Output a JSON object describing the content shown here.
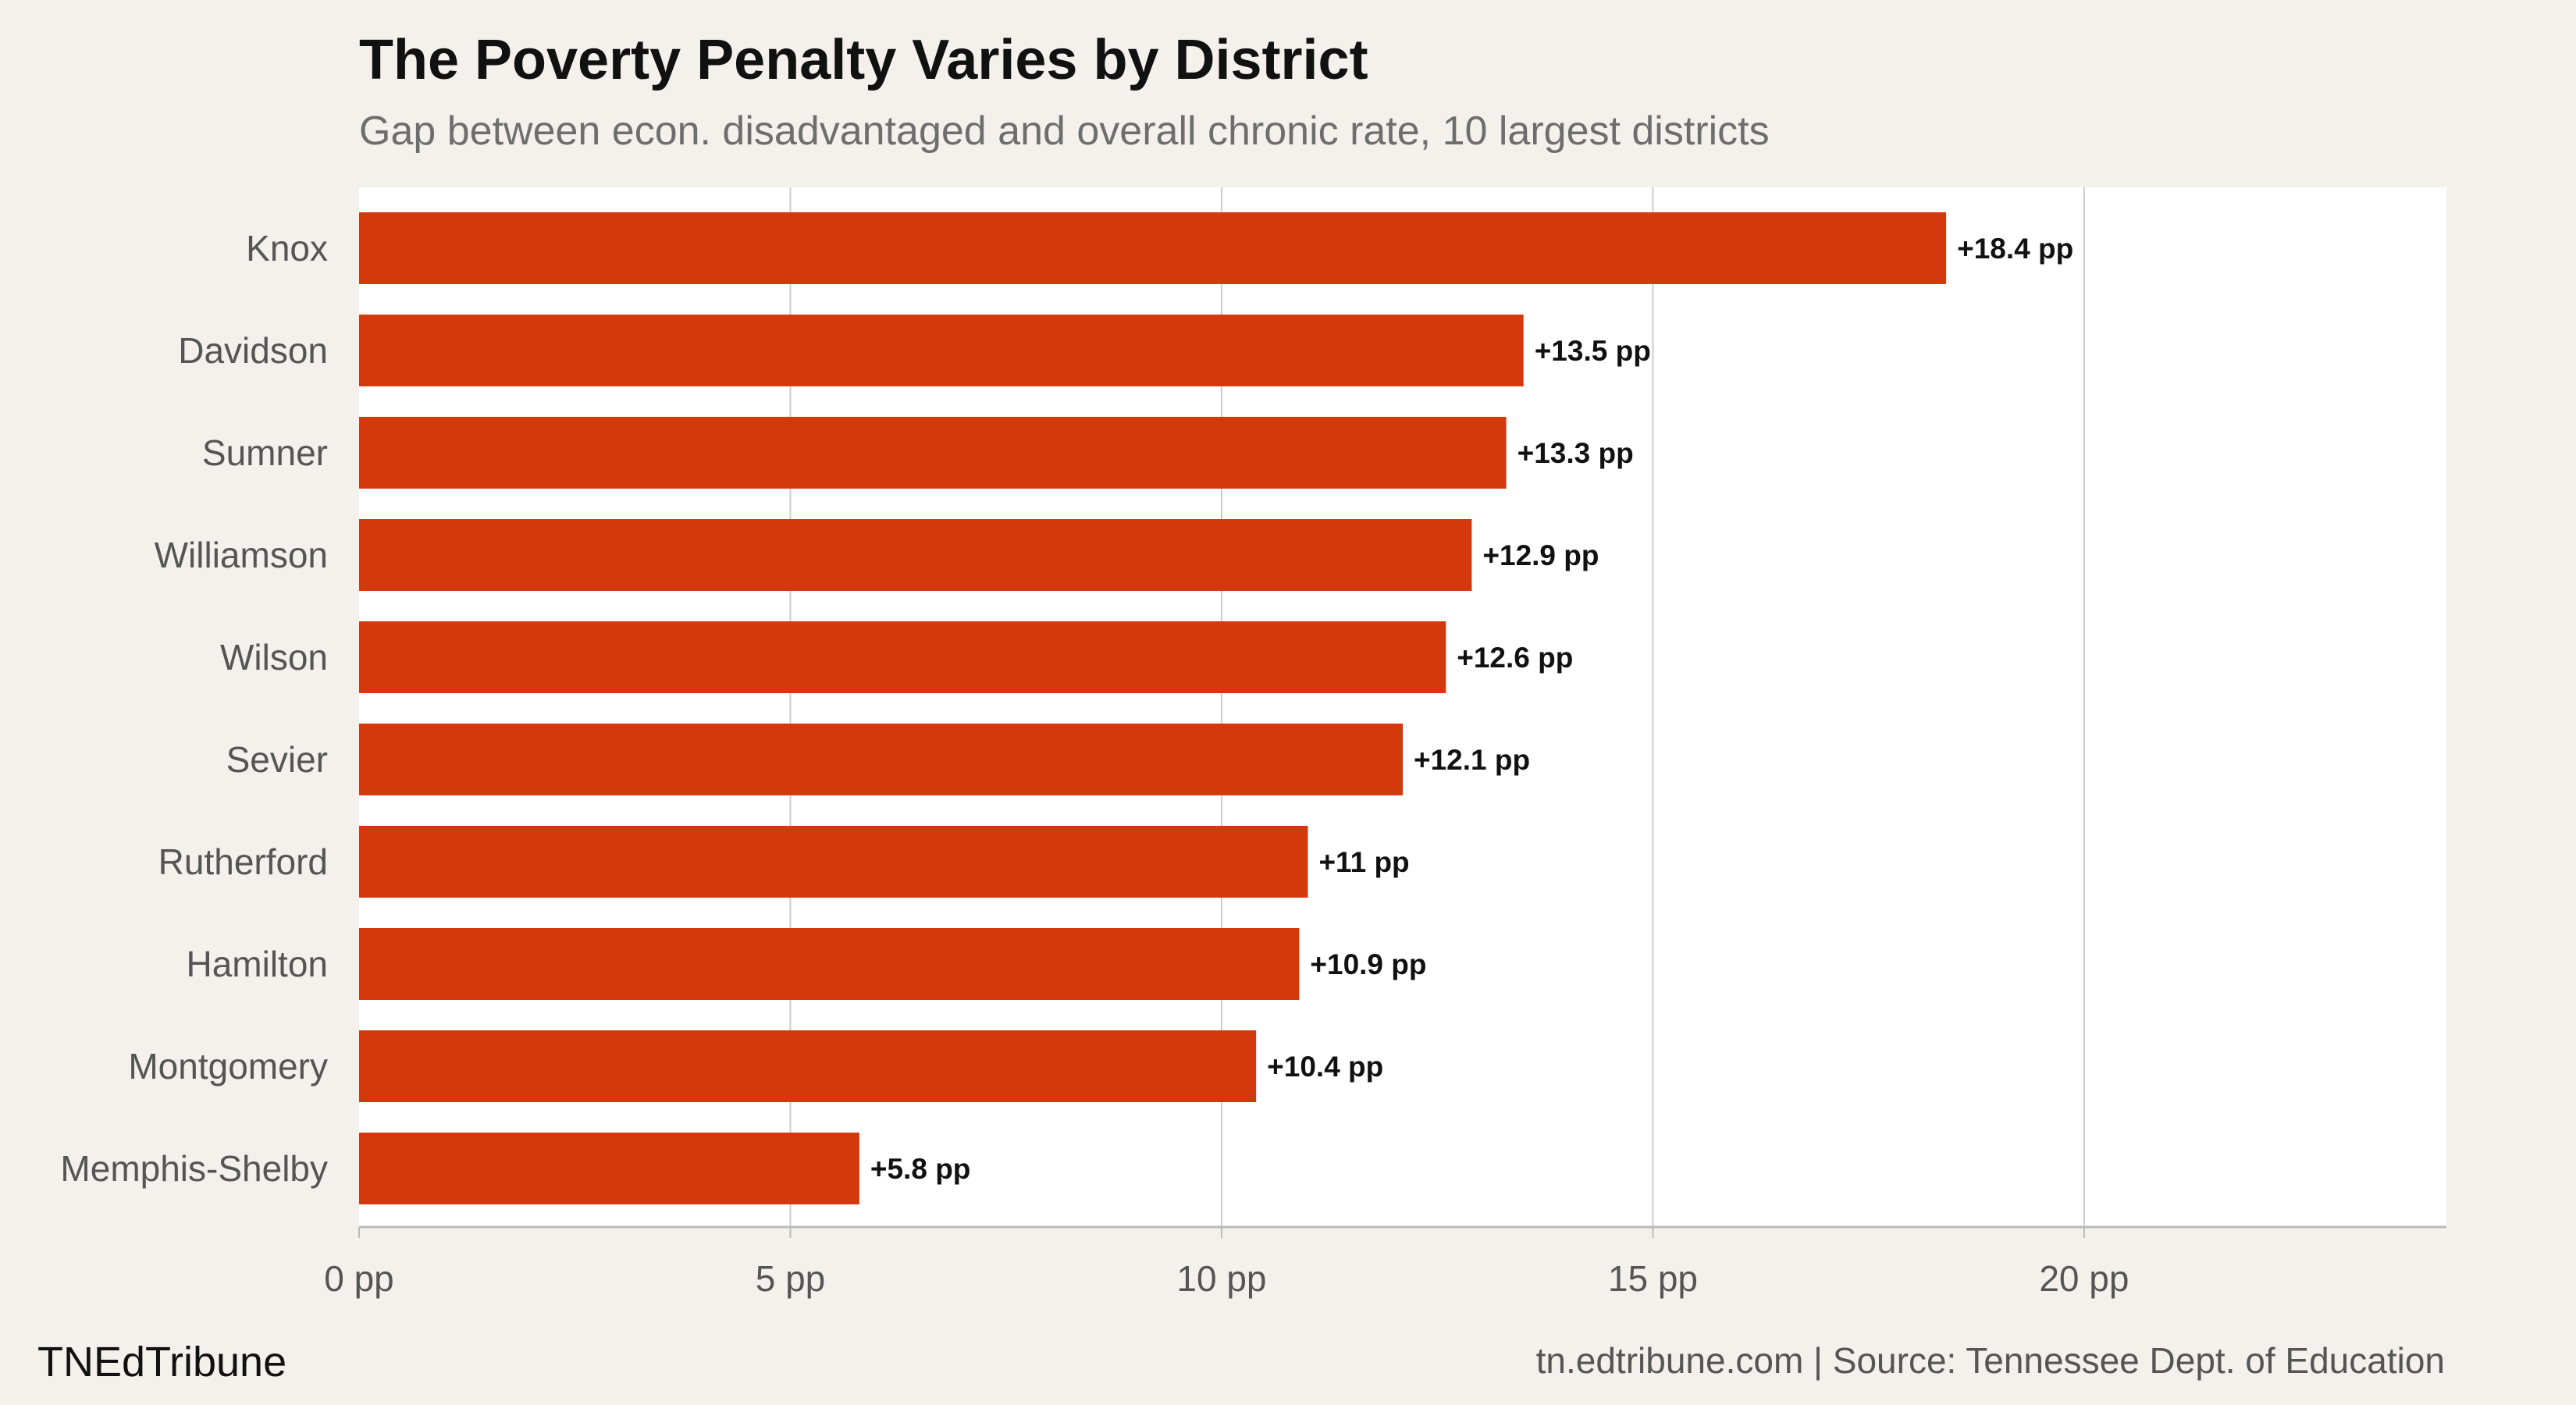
{
  "brand": "TNEdTribune",
  "source": "tn.edtribune.com | Source: Tennessee Dept. of Education",
  "colors": {
    "bar": "#d4380d",
    "plot_background": "#ffffff",
    "page_background": "#f4f1ec",
    "grid": "#cccccc",
    "axis": "#bbbbbb"
  },
  "chart_data": {
    "type": "bar",
    "orientation": "horizontal",
    "title": "The Poverty Penalty Varies by District",
    "subtitle": "Gap between econ. disadvantaged and overall chronic rate, 10 largest districts",
    "categories": [
      "Knox",
      "Davidson",
      "Sumner",
      "Williamson",
      "Wilson",
      "Sevier",
      "Rutherford",
      "Hamilton",
      "Montgomery",
      "Memphis-Shelby"
    ],
    "values": [
      18.4,
      13.5,
      13.3,
      12.9,
      12.6,
      12.1,
      11,
      10.9,
      10.4,
      5.8
    ],
    "data_labels": [
      "+18.4 pp",
      "+13.5 pp",
      "+13.3 pp",
      "+12.9 pp",
      "+12.6 pp",
      "+12.1 pp",
      "+11 pp",
      "+10.9 pp",
      "+10.4 pp",
      "+5.8 pp"
    ],
    "xlabel": "",
    "ylabel": "",
    "xlim": [
      0,
      24.2
    ],
    "x_ticks": [
      0,
      5,
      10,
      15,
      20
    ],
    "x_tick_labels": [
      "0 pp",
      "5 pp",
      "10 pp",
      "15 pp",
      "20 pp"
    ],
    "grid": true,
    "legend": "none"
  }
}
